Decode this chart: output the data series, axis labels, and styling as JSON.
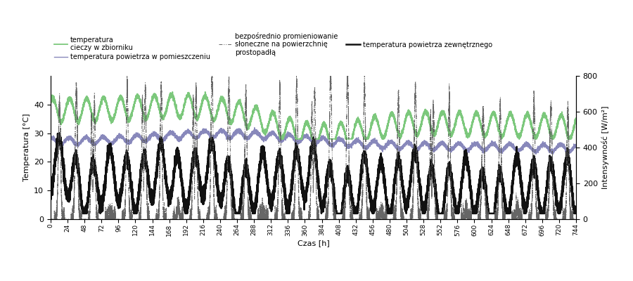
{
  "title": "",
  "xlabel": "Czas [h]",
  "ylabel_left": "Temperatura [°C]",
  "ylabel_right": "Intensywność [W/m²]",
  "xlim": [
    0,
    744
  ],
  "ylim_left": [
    0,
    50
  ],
  "ylim_right": [
    0,
    800
  ],
  "xticks": [
    0,
    24,
    48,
    72,
    96,
    120,
    144,
    168,
    192,
    216,
    240,
    264,
    288,
    312,
    336,
    360,
    384,
    408,
    432,
    456,
    480,
    504,
    528,
    552,
    576,
    600,
    624,
    648,
    672,
    696,
    720,
    744
  ],
  "yticks_left": [
    0,
    10,
    20,
    30,
    40
  ],
  "yticks_right": [
    0,
    200,
    400,
    600,
    800
  ],
  "color_tank": "#7cc87c",
  "color_room": "#8888bb",
  "color_external": "#111111",
  "color_solar": "#555555",
  "lw_tank": 1.3,
  "lw_room": 1.0,
  "lw_external": 1.8,
  "lw_solar": 0.7,
  "legend_tank": "temperatura\ncieczy w zbiorniku",
  "legend_room": "temperatura powietrza w pomieszczeniu",
  "legend_external": "temperatura powietrza zewnętrznego",
  "legend_solar": "bezpośrednio promieniowanie\nsłoneczne na powierzchnię\nprostopadłą",
  "figsize": [
    9.0,
    4.0
  ],
  "dpi": 100
}
